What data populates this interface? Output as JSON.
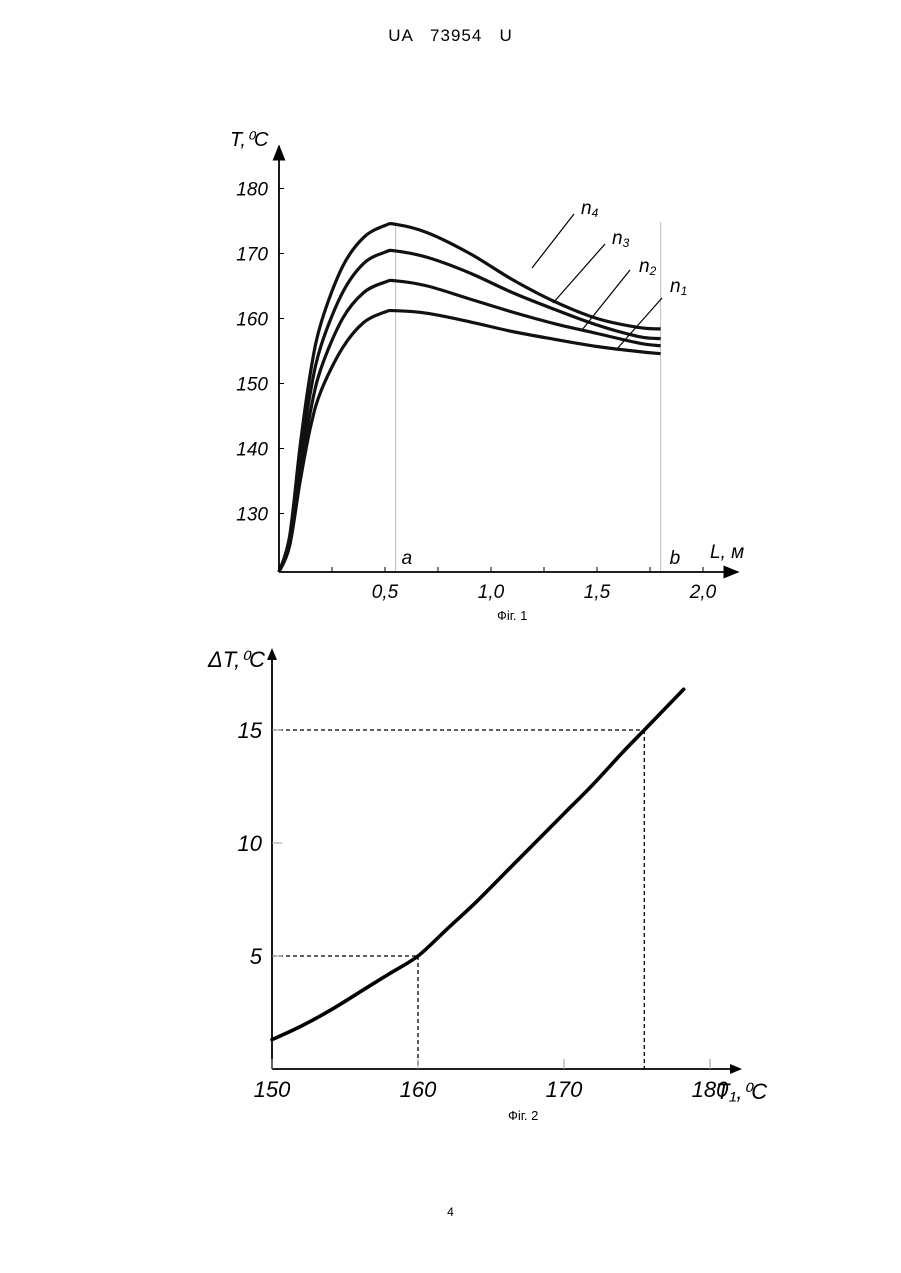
{
  "header": {
    "text": "UA   73954   U"
  },
  "page_number": "4",
  "figures": [
    {
      "caption": "Фіг. 1"
    },
    {
      "caption": "Фіг. 2"
    }
  ],
  "chart_data": [
    {
      "type": "line",
      "ylabel": "T,⁰C",
      "xlabel": "L, м",
      "xlim": [
        0,
        2.2
      ],
      "ylim": [
        121,
        183
      ],
      "x_ticks": [
        0.5,
        1.0,
        1.5,
        2.0
      ],
      "x_tick_labels": [
        "0,5",
        "1,0",
        "1,5",
        "2,0"
      ],
      "y_ticks": [
        130,
        140,
        150,
        160,
        170,
        180
      ],
      "y_tick_labels": [
        "130",
        "140",
        "150",
        "160",
        "170",
        "180"
      ],
      "grid": false,
      "point_labels": [
        {
          "text": "a",
          "x": 0.55
        },
        {
          "text": "b",
          "x": 1.8
        }
      ],
      "series": [
        {
          "name": "n1",
          "label": "n",
          "sub": "1",
          "x": [
            0,
            0.05,
            0.1,
            0.15,
            0.2,
            0.3,
            0.4,
            0.5,
            0.55,
            0.7,
            0.9,
            1.1,
            1.3,
            1.5,
            1.7,
            1.8
          ],
          "y": [
            121,
            125,
            135,
            143.5,
            149,
            155.5,
            159.4,
            161,
            161.2,
            160.8,
            159.5,
            158,
            156.8,
            155.7,
            154.9,
            154.6
          ]
        },
        {
          "name": "n2",
          "label": "n",
          "sub": "2",
          "x": [
            0,
            0.05,
            0.1,
            0.15,
            0.2,
            0.3,
            0.4,
            0.5,
            0.55,
            0.7,
            0.9,
            1.1,
            1.3,
            1.5,
            1.7,
            1.8
          ],
          "y": [
            121,
            125.5,
            136.5,
            146,
            152.5,
            160,
            164,
            165.6,
            165.8,
            165,
            163,
            161,
            159.2,
            157.7,
            156.2,
            155.8
          ]
        },
        {
          "name": "n3",
          "label": "n",
          "sub": "3",
          "x": [
            0,
            0.05,
            0.1,
            0.15,
            0.2,
            0.3,
            0.4,
            0.5,
            0.55,
            0.7,
            0.9,
            1.1,
            1.3,
            1.5,
            1.7,
            1.8
          ],
          "y": [
            121,
            126,
            138.5,
            149,
            156,
            164,
            168.5,
            170.2,
            170.4,
            169.4,
            167,
            164,
            161.4,
            159,
            157.2,
            156.9
          ]
        },
        {
          "name": "n4",
          "label": "n",
          "sub": "4",
          "x": [
            0,
            0.05,
            0.1,
            0.15,
            0.2,
            0.3,
            0.4,
            0.5,
            0.55,
            0.7,
            0.9,
            1.1,
            1.3,
            1.5,
            1.7,
            1.8
          ],
          "y": [
            121,
            126.5,
            140.5,
            152,
            159.5,
            168,
            172.5,
            174.3,
            174.5,
            173.2,
            170,
            166,
            162.6,
            160,
            158.6,
            158.4
          ]
        }
      ]
    },
    {
      "type": "line",
      "ylabel": "ΔT,⁰C",
      "xlabel": "T₁,⁰C",
      "xlim": [
        150,
        182
      ],
      "ylim": [
        0,
        18
      ],
      "x_ticks": [
        150,
        160,
        170,
        180
      ],
      "x_tick_labels": [
        "150",
        "160",
        "170",
        "180"
      ],
      "y_ticks": [
        5,
        10,
        15
      ],
      "y_tick_labels": [
        "5",
        "10",
        "15"
      ],
      "grid": false,
      "reference_points": [
        {
          "x": 160,
          "y": 5
        },
        {
          "x": 175.5,
          "y": 15
        }
      ],
      "series": [
        {
          "x": [
            150,
            152,
            154,
            156,
            158,
            160,
            162,
            164,
            166,
            168,
            170,
            172,
            174,
            175.5,
            177,
            178.2
          ],
          "y": [
            1.3,
            1.9,
            2.6,
            3.4,
            4.2,
            5.0,
            6.2,
            7.4,
            8.7,
            10.0,
            11.3,
            12.6,
            14.0,
            15.0,
            16.0,
            16.8
          ]
        }
      ]
    }
  ]
}
